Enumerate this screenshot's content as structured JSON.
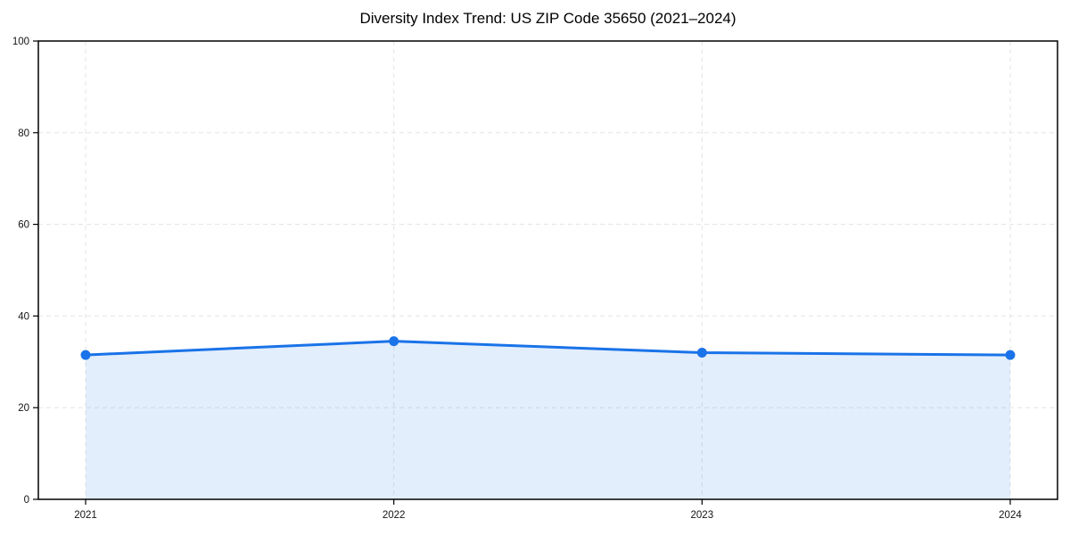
{
  "chart_data": {
    "type": "area",
    "title": "Diversity Index Trend: US ZIP Code 35650 (2021–2024)",
    "categories": [
      "2021",
      "2022",
      "2023",
      "2024"
    ],
    "series": [
      {
        "name": "Diversity Index",
        "values": [
          31.5,
          34.5,
          32.0,
          31.5
        ]
      }
    ],
    "xlabel": "",
    "ylabel": "",
    "ylim": [
      0,
      100
    ],
    "yticks": [
      0,
      20,
      40,
      60,
      80,
      100
    ],
    "grid": "dashed-both-axes",
    "legend": "none",
    "line_color": "#1a73e8",
    "fill_color": "rgba(26,115,232,0.12)",
    "marker": "circle",
    "spine_color": "#000000",
    "grid_color": "#e4e4e4",
    "tick_label_color": "#141414"
  }
}
